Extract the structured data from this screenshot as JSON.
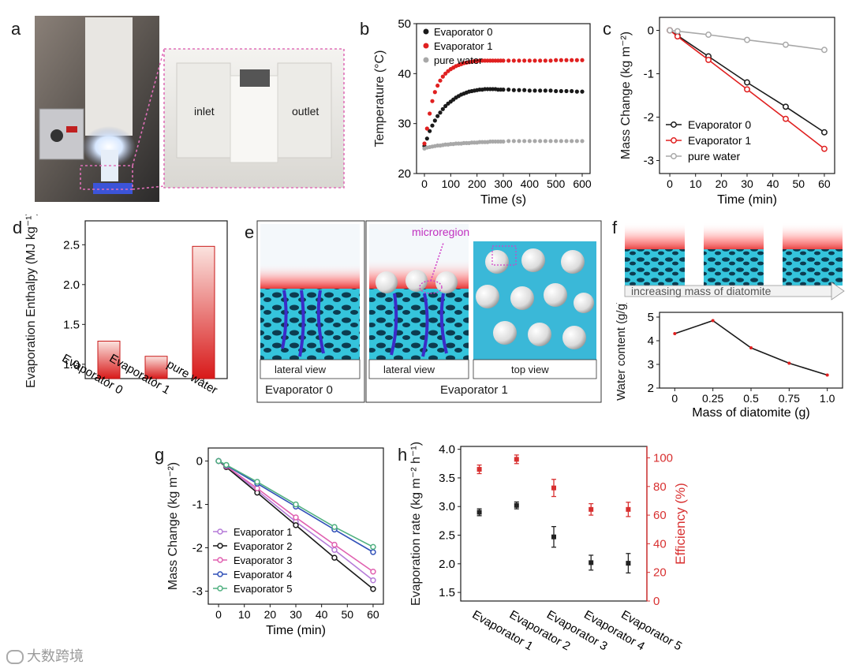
{
  "panels": {
    "a": {
      "letter": "a",
      "inlet": "inlet",
      "outlet": "outlet"
    },
    "b": {
      "letter": "b"
    },
    "c": {
      "letter": "c"
    },
    "d": {
      "letter": "d"
    },
    "e": {
      "letter": "e",
      "microregion": "microregion",
      "lateral1": "lateral view",
      "lateral2": "lateral view",
      "top": "top view",
      "caption0": "Evaporator 0",
      "caption1": "Evaporator 1"
    },
    "f": {
      "letter": "f",
      "arrow_text": "increasing mass of diatomite"
    },
    "g": {
      "letter": "g"
    },
    "h": {
      "letter": "h"
    }
  },
  "watermark": "大数跨境",
  "colors": {
    "black": "#1a1a1a",
    "red": "#e02020",
    "gray": "#a8a8a8",
    "purple": "#b57bd8",
    "pink": "#e060b0",
    "blue": "#3050b8",
    "green": "#50b080",
    "cyan": "#3bbcd8",
    "h_red": "#d83030"
  },
  "chart_data": [
    {
      "id": "b",
      "type": "scatter",
      "xlabel": "Time (s)",
      "ylabel": "Temperature (°C)",
      "xlim": [
        0,
        600
      ],
      "ylim": [
        20,
        50
      ],
      "xticks": [
        "0",
        "100",
        "200",
        "300",
        "400",
        "500",
        "600"
      ],
      "yticks": [
        "20",
        "30",
        "40",
        "50"
      ],
      "legend": "top-left",
      "series": [
        {
          "name": "Evaporator 0",
          "color": "black",
          "x": [
            0,
            10,
            20,
            30,
            40,
            50,
            60,
            70,
            80,
            90,
            100,
            110,
            120,
            130,
            140,
            150,
            160,
            170,
            180,
            190,
            200,
            210,
            220,
            230,
            240,
            250,
            260,
            270,
            280,
            290,
            300,
            320,
            340,
            360,
            380,
            400,
            420,
            440,
            460,
            480,
            500,
            520,
            540,
            560,
            580,
            600
          ],
          "y": [
            25.5,
            27,
            28.5,
            29.6,
            30.6,
            31.5,
            32.2,
            32.9,
            33.5,
            34,
            34.4,
            34.8,
            35.2,
            35.5,
            35.8,
            36,
            36.2,
            36.4,
            36.5,
            36.6,
            36.7,
            36.8,
            36.8,
            36.9,
            36.9,
            36.9,
            36.9,
            36.9,
            36.8,
            36.8,
            36.8,
            36.8,
            36.7,
            36.7,
            36.7,
            36.6,
            36.6,
            36.6,
            36.6,
            36.6,
            36.5,
            36.5,
            36.5,
            36.5,
            36.4,
            36.4
          ]
        },
        {
          "name": "Evaporator 1",
          "color": "red",
          "x": [
            0,
            10,
            20,
            30,
            40,
            50,
            60,
            70,
            80,
            90,
            100,
            110,
            120,
            130,
            140,
            150,
            160,
            170,
            180,
            190,
            200,
            210,
            220,
            230,
            240,
            250,
            260,
            270,
            280,
            290,
            300,
            320,
            340,
            360,
            380,
            400,
            420,
            440,
            460,
            480,
            500,
            520,
            540,
            560,
            580,
            600
          ],
          "y": [
            26,
            29,
            32,
            34.5,
            36.3,
            37.6,
            38.6,
            39.4,
            40,
            40.5,
            40.9,
            41.2,
            41.5,
            41.7,
            41.9,
            42.1,
            42.2,
            42.3,
            42.4,
            42.5,
            42.5,
            42.6,
            42.6,
            42.6,
            42.6,
            42.6,
            42.6,
            42.6,
            42.6,
            42.6,
            42.6,
            42.6,
            42.6,
            42.6,
            42.6,
            42.6,
            42.6,
            42.6,
            42.6,
            42.6,
            42.7,
            42.7,
            42.7,
            42.7,
            42.7,
            42.7
          ]
        },
        {
          "name": "pure water",
          "color": "gray",
          "x": [
            0,
            10,
            20,
            30,
            40,
            50,
            60,
            70,
            80,
            90,
            100,
            110,
            120,
            130,
            140,
            150,
            160,
            170,
            180,
            190,
            200,
            210,
            220,
            230,
            240,
            250,
            260,
            270,
            280,
            290,
            300,
            320,
            340,
            360,
            380,
            400,
            420,
            440,
            460,
            480,
            500,
            520,
            540,
            560,
            580,
            600
          ],
          "y": [
            25,
            25.2,
            25.3,
            25.4,
            25.5,
            25.6,
            25.6,
            25.7,
            25.8,
            25.8,
            25.9,
            25.9,
            26,
            26,
            26,
            26.1,
            26.1,
            26.1,
            26.2,
            26.2,
            26.2,
            26.3,
            26.3,
            26.3,
            26.3,
            26.4,
            26.4,
            26.4,
            26.4,
            26.4,
            26.4,
            26.5,
            26.5,
            26.5,
            26.5,
            26.5,
            26.5,
            26.5,
            26.5,
            26.5,
            26.5,
            26.5,
            26.5,
            26.5,
            26.5,
            26.5
          ]
        }
      ]
    },
    {
      "id": "c",
      "type": "line",
      "xlabel": "Time (min)",
      "ylabel": "Mass Change (kg m⁻²)",
      "xlim": [
        0,
        60
      ],
      "ylim": [
        -3.3,
        0.3
      ],
      "xticks": [
        "0",
        "10",
        "20",
        "30",
        "40",
        "50",
        "60"
      ],
      "yticks": [
        "0",
        "-1",
        "-2",
        "-3"
      ],
      "legend": "bottom-left",
      "series": [
        {
          "name": "Evaporator 0",
          "color": "black",
          "x": [
            0,
            3,
            15,
            30,
            45,
            60
          ],
          "y": [
            0,
            -0.12,
            -0.6,
            -1.2,
            -1.76,
            -2.35
          ]
        },
        {
          "name": "Evaporator 1",
          "color": "red",
          "x": [
            0,
            3,
            15,
            30,
            45,
            60
          ],
          "y": [
            0,
            -0.14,
            -0.68,
            -1.36,
            -2.04,
            -2.73
          ]
        },
        {
          "name": "pure water",
          "color": "gray",
          "x": [
            0,
            3,
            15,
            30,
            45,
            60
          ],
          "y": [
            0,
            -0.02,
            -0.1,
            -0.22,
            -0.33,
            -0.45
          ]
        }
      ]
    },
    {
      "id": "d",
      "type": "bar",
      "ylabel": "Evaporation Enthalpy (MJ kg⁻¹)",
      "ylim": [
        0.82,
        2.8
      ],
      "yticks": [
        "1.0",
        "1.5",
        "2.0",
        "2.5"
      ],
      "categories": [
        "Evaporator 0",
        "Evaporator 1",
        "pure water"
      ],
      "values": [
        1.29,
        1.1,
        2.48
      ]
    },
    {
      "id": "f",
      "type": "line",
      "xlabel": "Mass of diatomite (g)",
      "ylabel": "Water content (g/g)",
      "xlim": [
        -0.1,
        1.1
      ],
      "ylim": [
        2,
        5.2
      ],
      "xticks": [
        "0",
        "0.25",
        "0.5",
        "0.75",
        "1.0"
      ],
      "yticks": [
        "2",
        "3",
        "4",
        "5"
      ],
      "x": [
        0,
        0.25,
        0.5,
        0.75,
        1.0
      ],
      "y": [
        4.3,
        4.85,
        3.7,
        3.05,
        2.55
      ]
    },
    {
      "id": "g",
      "type": "line",
      "xlabel": "Time (min)",
      "ylabel": "Mass Change (kg m⁻²)",
      "xlim": [
        0,
        60
      ],
      "ylim": [
        -3.3,
        0.3
      ],
      "xticks": [
        "0",
        "10",
        "20",
        "30",
        "40",
        "50",
        "60"
      ],
      "yticks": [
        "0",
        "-1",
        "-2",
        "-3"
      ],
      "legend": "bottom-left",
      "series": [
        {
          "name": "Evaporator 1",
          "color": "purple",
          "x": [
            0,
            3,
            15,
            30,
            45,
            60
          ],
          "y": [
            0,
            -0.13,
            -0.68,
            -1.4,
            -2.05,
            -2.75
          ]
        },
        {
          "name": "Evaporator 2",
          "color": "black",
          "x": [
            0,
            3,
            15,
            30,
            45,
            60
          ],
          "y": [
            0,
            -0.14,
            -0.73,
            -1.48,
            -2.23,
            -2.95
          ]
        },
        {
          "name": "Evaporator 3",
          "color": "pink",
          "x": [
            0,
            3,
            15,
            30,
            45,
            60
          ],
          "y": [
            0,
            -0.12,
            -0.63,
            -1.3,
            -1.93,
            -2.55
          ]
        },
        {
          "name": "Evaporator 4",
          "color": "blue",
          "x": [
            0,
            3,
            15,
            30,
            45,
            60
          ],
          "y": [
            0,
            -0.1,
            -0.52,
            -1.05,
            -1.58,
            -2.1
          ]
        },
        {
          "name": "Evaporator 5",
          "color": "green",
          "x": [
            0,
            3,
            15,
            30,
            45,
            60
          ],
          "y": [
            0,
            -0.09,
            -0.48,
            -1.0,
            -1.52,
            -1.98
          ]
        }
      ]
    },
    {
      "id": "h",
      "type": "scatter",
      "ylabel": "Evaporation rate (kg m⁻² h⁻¹)",
      "ylabel_right": "Efficiency (%)",
      "ylim": [
        1.35,
        4.05
      ],
      "ylim_right": [
        0,
        108
      ],
      "yticks": [
        "1.5",
        "2.0",
        "2.5",
        "3.0",
        "3.5",
        "4.0"
      ],
      "yticks_right": [
        "0",
        "20",
        "40",
        "60",
        "80",
        "100"
      ],
      "categories": [
        "Evaporator 1",
        "Evaporator 2",
        "Evaporator 3",
        "Evaporator 4",
        "Evaporator 5"
      ],
      "rate": [
        2.9,
        3.02,
        2.47,
        2.02,
        2.01
      ],
      "rate_err": [
        0.06,
        0.06,
        0.18,
        0.13,
        0.17
      ],
      "efficiency": [
        92,
        99,
        79,
        64,
        64
      ],
      "efficiency_err": [
        3,
        3,
        6,
        4,
        5
      ]
    }
  ]
}
